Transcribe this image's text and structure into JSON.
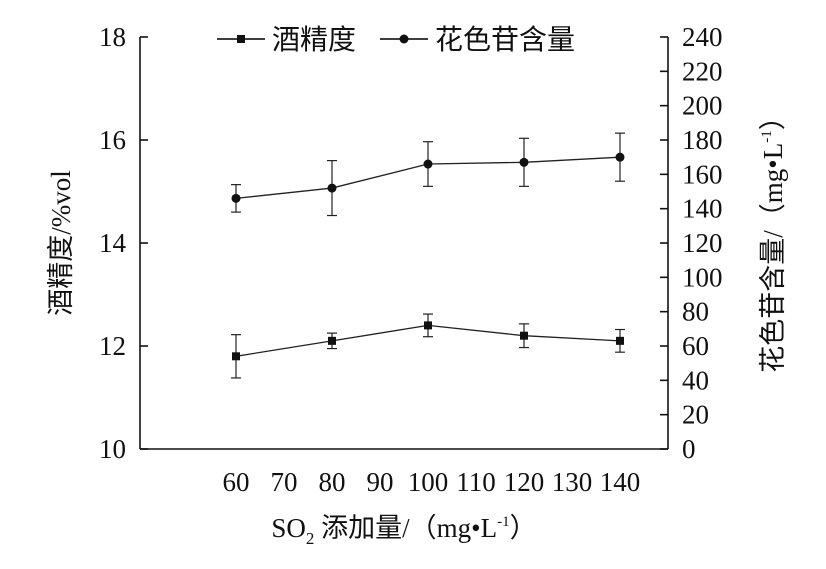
{
  "chart_data": {
    "type": "line",
    "x": [
      60,
      80,
      100,
      120,
      140
    ],
    "xlim": [
      40,
      150
    ],
    "x_ticks": [
      "60",
      "70",
      "80",
      "90",
      "100",
      "110",
      "120",
      "130",
      "140"
    ],
    "xlabel": {
      "prefix": "SO",
      "subscript": "2",
      "main": " 添加量/（mg•L",
      "superscript": "-1",
      "suffix": "）"
    },
    "y_left": {
      "label": "酒精度/%vol",
      "lim": [
        10,
        18
      ],
      "ticks": [
        "10",
        "12",
        "14",
        "16",
        "18"
      ]
    },
    "y_right": {
      "label_main": "花色苷含量/（mg•L",
      "label_superscript": "-1",
      "label_suffix": "）",
      "lim": [
        0,
        240
      ],
      "ticks": [
        "0",
        "20",
        "40",
        "60",
        "80",
        "100",
        "120",
        "140",
        "160",
        "180",
        "200",
        "220",
        "240"
      ]
    },
    "series": [
      {
        "name": "酒精度",
        "axis": "left",
        "marker": "square",
        "values": [
          11.8,
          12.1,
          12.4,
          12.2,
          12.1
        ],
        "error": [
          0.42,
          0.15,
          0.22,
          0.23,
          0.22
        ]
      },
      {
        "name": "花色苷含量",
        "axis": "right",
        "marker": "circle",
        "values": [
          146,
          152,
          166,
          167,
          170
        ],
        "error": [
          8,
          16,
          13,
          14,
          14
        ]
      }
    ],
    "legend_position": "top-center",
    "grid": false
  }
}
